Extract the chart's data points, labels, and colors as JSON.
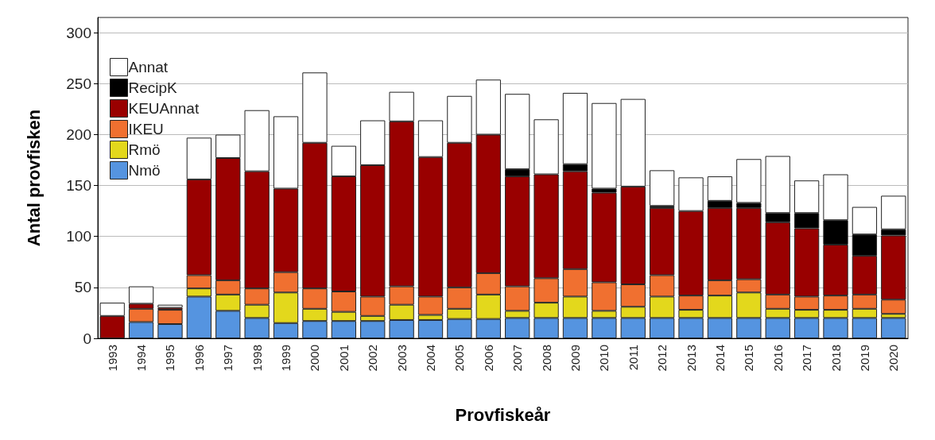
{
  "chart_data": {
    "type": "bar",
    "stacked": true,
    "xlabel": "Provfiskeår",
    "ylabel": "Antal provfisken",
    "categories": [
      "1993",
      "1994",
      "1995",
      "1996",
      "1997",
      "1998",
      "1999",
      "2000",
      "2001",
      "2002",
      "2003",
      "2004",
      "2005",
      "2006",
      "2007",
      "2008",
      "2009",
      "2010",
      "2011",
      "2012",
      "2013",
      "2014",
      "2015",
      "2016",
      "2017",
      "2018",
      "2019",
      "2020"
    ],
    "series": [
      {
        "name": "Nmö",
        "color": "#5594e0",
        "values": [
          0,
          16,
          14,
          41,
          27,
          20,
          15,
          17,
          17,
          17,
          18,
          18,
          19,
          19,
          20,
          20,
          20,
          20,
          20,
          20,
          20,
          20,
          20,
          20,
          20,
          20,
          20,
          20
        ]
      },
      {
        "name": "Rmö",
        "color": "#e3d81c",
        "values": [
          0,
          0,
          0,
          8,
          16,
          13,
          30,
          12,
          9,
          5,
          15,
          5,
          10,
          24,
          7,
          15,
          21,
          7,
          11,
          21,
          8,
          22,
          25,
          9,
          8,
          8,
          9,
          4
        ]
      },
      {
        "name": "IKEU",
        "color": "#f07030",
        "values": [
          0,
          13,
          14,
          13,
          14,
          16,
          20,
          20,
          20,
          19,
          18,
          18,
          21,
          21,
          24,
          24,
          27,
          28,
          22,
          21,
          14,
          15,
          13,
          14,
          13,
          14,
          14,
          14
        ]
      },
      {
        "name": "KEUAnnat",
        "color": "#990000",
        "values": [
          22,
          5,
          2,
          94,
          120,
          115,
          82,
          143,
          113,
          129,
          162,
          137,
          142,
          136,
          108,
          102,
          96,
          88,
          96,
          66,
          83,
          71,
          70,
          71,
          67,
          50,
          38,
          63
        ]
      },
      {
        "name": "RecipK",
        "color": "#000000",
        "values": [
          0,
          0,
          0,
          0,
          0,
          0,
          0,
          0,
          0,
          0,
          0,
          0,
          0,
          0,
          7,
          0,
          7,
          4,
          0,
          2,
          0,
          7,
          5,
          9,
          15,
          24,
          21,
          6
        ]
      },
      {
        "name": "Annat",
        "color": "#ffffff",
        "values": [
          13,
          17,
          3,
          41,
          23,
          60,
          71,
          69,
          30,
          44,
          29,
          36,
          46,
          54,
          74,
          54,
          70,
          84,
          86,
          35,
          33,
          24,
          43,
          56,
          32,
          45,
          27,
          33
        ]
      }
    ],
    "ylim": [
      0,
      315
    ],
    "yticks": [
      0,
      50,
      100,
      150,
      200,
      250,
      300
    ],
    "grid": "y",
    "legend": "top left"
  }
}
